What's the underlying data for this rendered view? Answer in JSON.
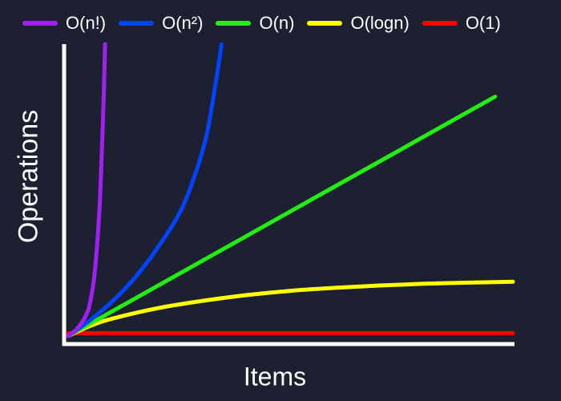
{
  "chart_data": {
    "type": "line",
    "title": "",
    "xlabel": "Items",
    "ylabel": "Operations",
    "grid": false,
    "legend_position": "top",
    "background": "#1c2030",
    "axis_color": "#ffffff",
    "xlim": [
      0,
      100
    ],
    "ylim": [
      0,
      100
    ],
    "x": [
      0,
      5,
      10,
      20,
      30,
      40,
      50,
      60,
      70,
      80,
      90,
      100
    ],
    "series": [
      {
        "name": "O(n!)",
        "color": "#a020f0",
        "x": [
          0,
          2,
          4,
          5,
          6,
          7,
          7.5,
          8,
          8.3
        ],
        "values": [
          0,
          2.5,
          7,
          12,
          22,
          42,
          60,
          82,
          100
        ]
      },
      {
        "name": "O(n²)",
        "color": "#0044ff",
        "x": [
          0,
          5,
          10,
          15,
          20,
          25,
          28,
          31,
          33,
          34.5
        ],
        "values": [
          0,
          5.5,
          12,
          20,
          30,
          42,
          53,
          68,
          85,
          100
        ]
      },
      {
        "name": "O(n)",
        "color": "#22ee11",
        "x": [
          0,
          96
        ],
        "values": [
          0,
          82
        ]
      },
      {
        "name": "O(logn)",
        "color": "#ffff00",
        "x": [
          0,
          5,
          10,
          20,
          30,
          40,
          50,
          60,
          70,
          80,
          90,
          100
        ],
        "values": [
          0,
          3.5,
          6,
          9.5,
          12,
          14,
          15.5,
          16.5,
          17.3,
          17.9,
          18.3,
          18.6
        ]
      },
      {
        "name": "O(1)",
        "color": "#ff0000",
        "x": [
          0,
          100
        ],
        "values": [
          1,
          1
        ]
      }
    ]
  }
}
